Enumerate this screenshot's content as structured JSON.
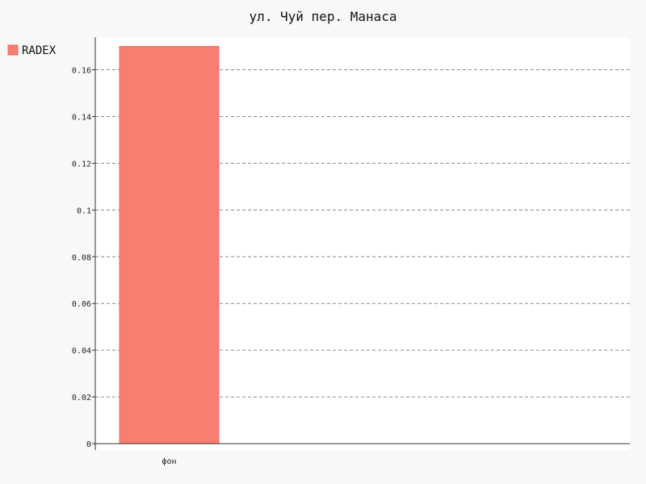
{
  "chart_data": {
    "type": "bar",
    "title": "ул. Чуй пер. Манаса",
    "categories": [
      "фон"
    ],
    "series": [
      {
        "name": "RADEX",
        "values": [
          0.17
        ]
      }
    ],
    "yticks": [
      0,
      0.02,
      0.04,
      0.06,
      0.08,
      0.1,
      0.12,
      0.14,
      0.16
    ],
    "ylim": [
      0,
      0.174
    ],
    "grid": true,
    "legend_position": "top-left",
    "colors": {
      "background": "#f8f8f8",
      "plot_background": "#ffffff",
      "bar_fill": "#f87e71",
      "bar_stroke": "#ef6b5e",
      "axis": "#333333",
      "grid": "#8a8a8a"
    }
  }
}
